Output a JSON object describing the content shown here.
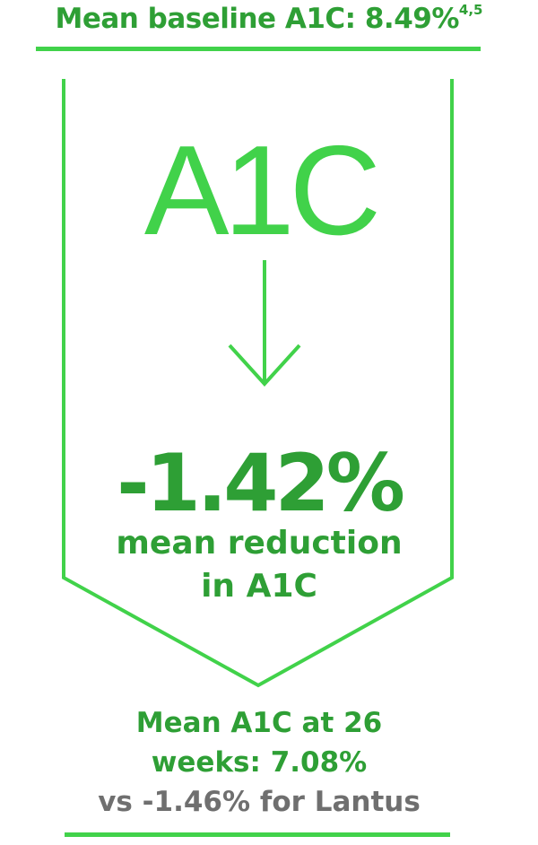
{
  "header": {
    "text": "Mean baseline A1C: 8.49%",
    "superscript": "4,5"
  },
  "main": {
    "title": "A1C",
    "value": "-1.42%",
    "reduction_line1": "mean reduction",
    "reduction_line2": "in A1C"
  },
  "footer": {
    "line1": "Mean A1C at 26",
    "line2": "weeks: 7.08%",
    "line3": "vs -1.46% for Lantus"
  },
  "colors": {
    "bright_green": "#41d24a",
    "dark_green": "#2e9f35",
    "gray": "#6f6f6f"
  },
  "icons": {
    "arrow": "arrow-down-icon"
  }
}
